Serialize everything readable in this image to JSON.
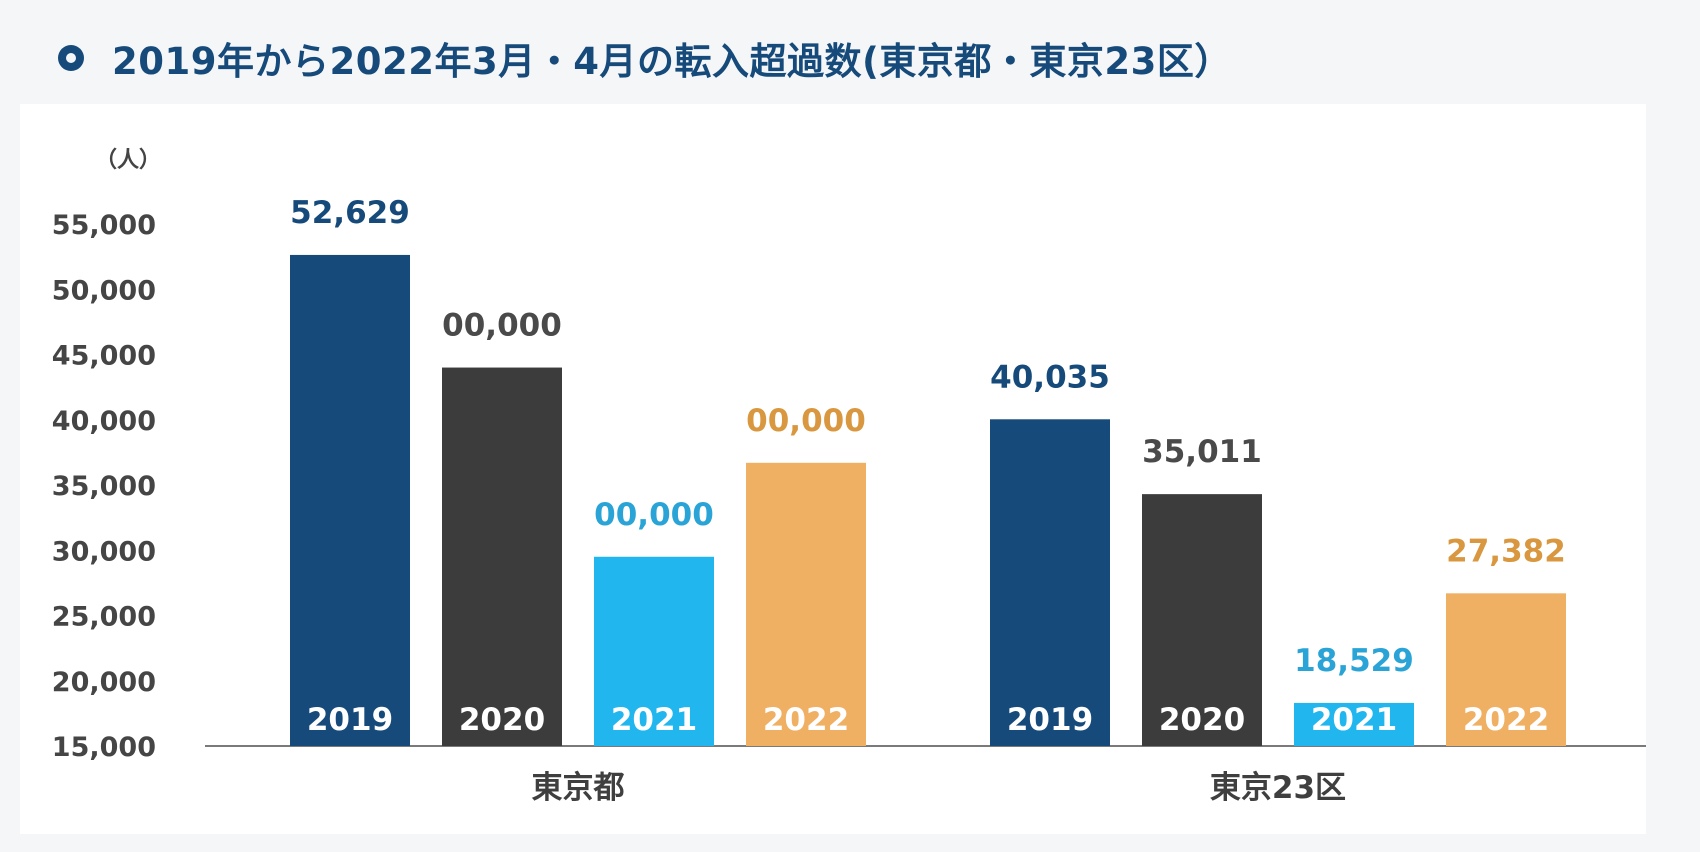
{
  "title": "2019年から2022年3月・4月の転入超過数(東京都・東京23区）",
  "chart_data": {
    "type": "bar",
    "unit_label": "（人）",
    "y_ticks": [
      "55,000",
      "50,000",
      "45,000",
      "40,000",
      "35,000",
      "30,000",
      "25,000",
      "20,000",
      "15,000"
    ],
    "ylim": [
      15000,
      55000
    ],
    "grid": false,
    "legend": "none",
    "categories": [
      "東京都",
      "東京23区"
    ],
    "series": [
      {
        "name": "2019",
        "color": "#154a7a",
        "label_color": "#154a7a",
        "values": [
          52629,
          40035
        ],
        "labels": [
          "52,629",
          "40,035"
        ]
      },
      {
        "name": "2020",
        "color": "#3c3c3c",
        "label_color": "#4a4a4a",
        "values": [
          44000,
          34300
        ],
        "labels": [
          "00,000",
          "35,011"
        ]
      },
      {
        "name": "2021",
        "color": "#22b6ee",
        "label_color": "#2aa4d6",
        "values": [
          29500,
          18300
        ],
        "labels": [
          "00,000",
          "18,529"
        ]
      },
      {
        "name": "2022",
        "color": "#efb064",
        "label_color": "#d9973f",
        "values": [
          36700,
          26700
        ],
        "labels": [
          "00,000",
          "27,382"
        ]
      }
    ]
  }
}
